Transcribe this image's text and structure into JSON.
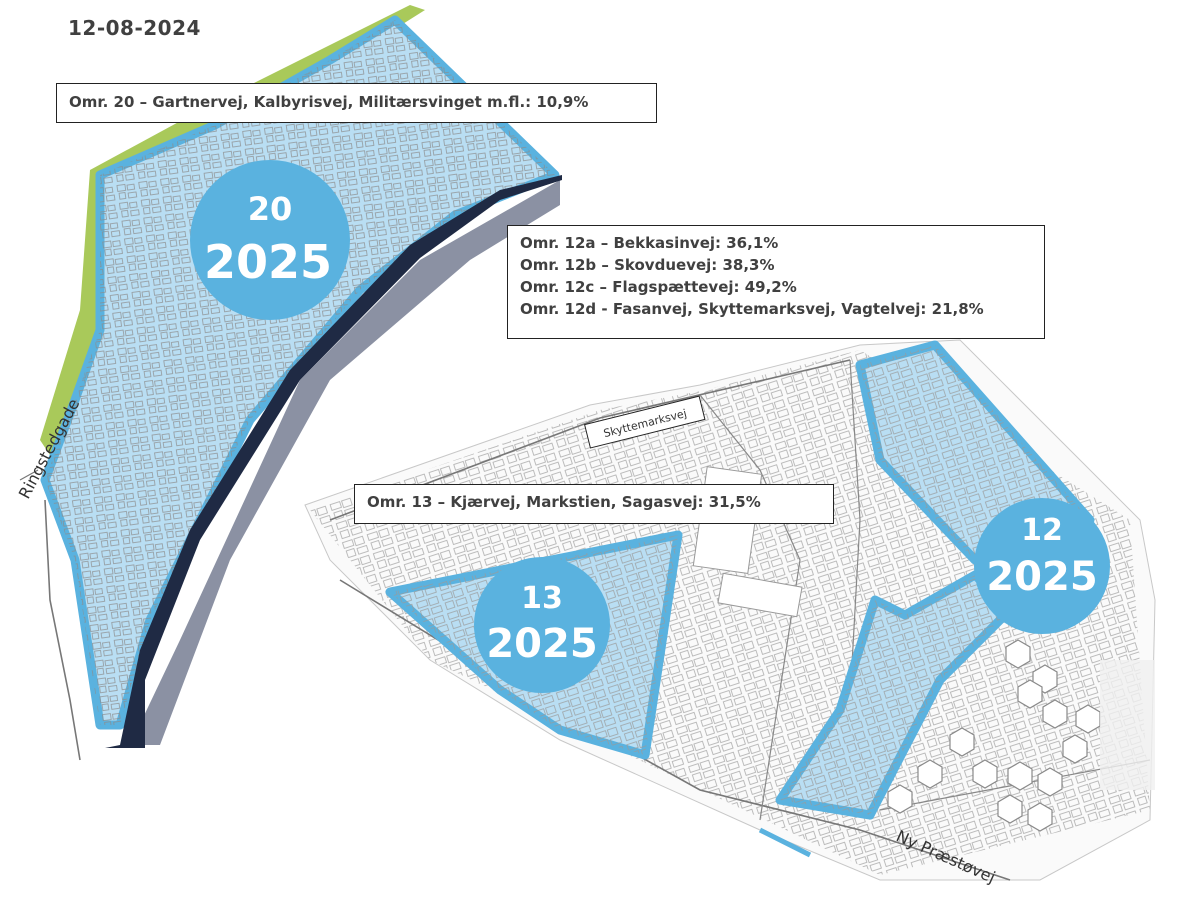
{
  "date": "12-08-2024",
  "areas": {
    "a20": {
      "number": "20",
      "year": "2025"
    },
    "a12": {
      "number": "12",
      "year": "2025"
    },
    "a13": {
      "number": "13",
      "year": "2025"
    }
  },
  "info_boxes": {
    "box20": [
      "Omr. 20 – Gartnervej, Kalbyrisvej, Militærsvinget m.fl.: 10,9%"
    ],
    "box12": [
      "Omr. 12a – Bekkasinvej: 36,1%",
      "Omr. 12b – Skovduevej: 38,3%",
      "Omr. 12c – Flagspættevej: 49,2%",
      "Omr. 12d - Fasanvej, Skyttemarksvej, Vagtelvej: 21,8%"
    ],
    "box13": [
      "Omr. 13 – Kjærvej, Markstien, Sagasvej: 31,5%"
    ]
  },
  "street_labels": {
    "ringstedgade": "Ringstedgade",
    "skyttemarksvej": "Skyttemarksvej",
    "ny_praestoevej": "Ny Præstøvej"
  },
  "colors": {
    "area_fill": "#b9def3",
    "area_border": "#5ab2df",
    "circle": "#5ab2df",
    "railway": "#1f2a44",
    "green_strip": "#a9c95a",
    "street_lines": "#8a8a8a"
  }
}
